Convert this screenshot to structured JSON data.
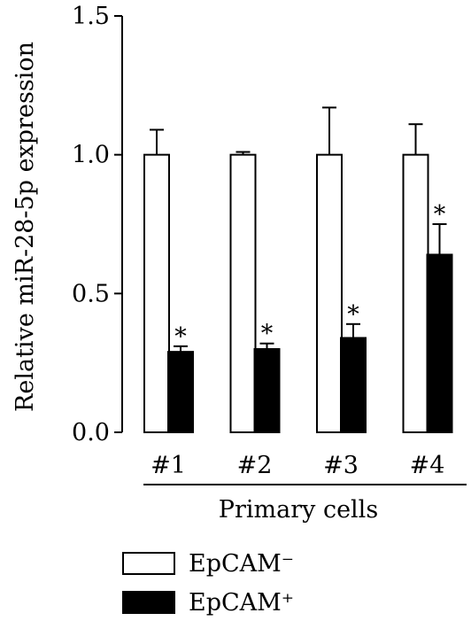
{
  "chart_data": {
    "type": "bar",
    "ylabel": "Relative miR-28-5p expression",
    "xlabel": "Primary cells",
    "categories": [
      "#1",
      "#2",
      "#3",
      "#4"
    ],
    "ylim": [
      0,
      1.5
    ],
    "yticks": [
      {
        "value": 0.0,
        "label": "0.0"
      },
      {
        "value": 0.5,
        "label": "0.5"
      },
      {
        "value": 1.0,
        "label": "1.0"
      },
      {
        "value": 1.5,
        "label": "1.5"
      }
    ],
    "grid": false,
    "legend_position": "bottom-left",
    "significance_marker": "*",
    "series": [
      {
        "name": "EpCAM⁻",
        "fill": "#ffffff",
        "stroke": "#000000",
        "values": [
          1.0,
          1.0,
          1.0,
          1.0
        ],
        "errors": [
          0.09,
          0.01,
          0.17,
          0.11
        ],
        "significant": [
          false,
          false,
          false,
          false
        ]
      },
      {
        "name": "EpCAM⁺",
        "fill": "#000000",
        "stroke": "#000000",
        "values": [
          0.29,
          0.3,
          0.34,
          0.64
        ],
        "errors": [
          0.02,
          0.02,
          0.05,
          0.11
        ],
        "significant": [
          true,
          true,
          true,
          true
        ]
      }
    ]
  }
}
